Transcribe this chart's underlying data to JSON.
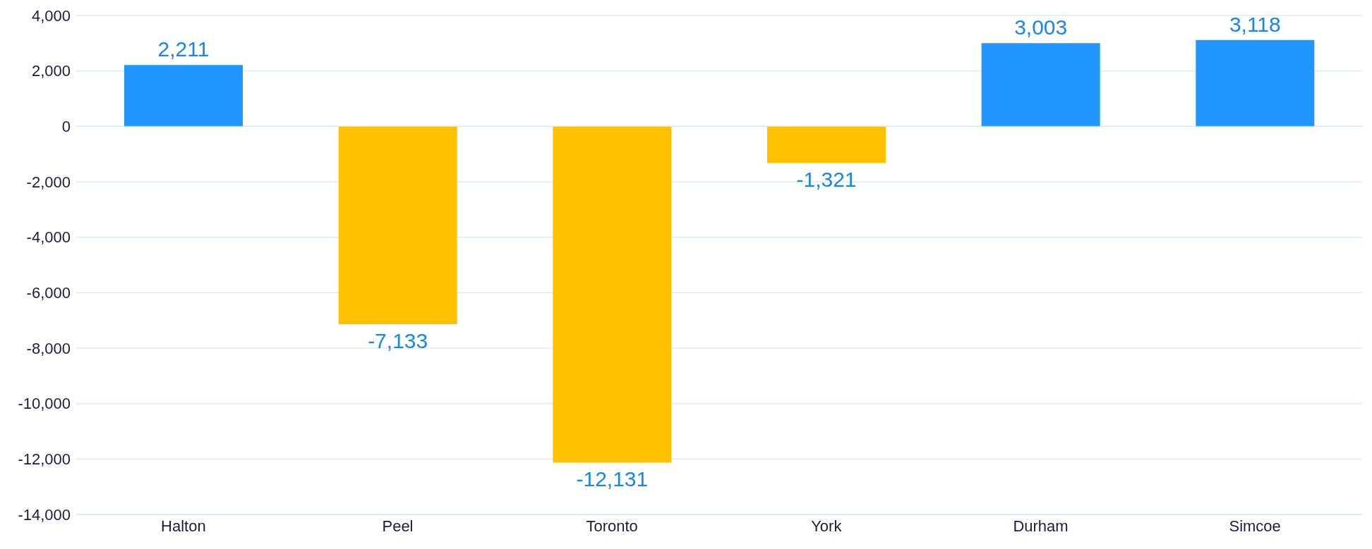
{
  "chart_data": {
    "type": "bar",
    "categories": [
      "Halton",
      "Peel",
      "Toronto",
      "York",
      "Durham",
      "Simcoe"
    ],
    "values": [
      2211,
      -7133,
      -12131,
      -1321,
      3003,
      3118
    ],
    "colors": [
      "#2196ff",
      "#ffc000",
      "#ffc000",
      "#ffc000",
      "#2196ff",
      "#2196ff"
    ],
    "value_labels": [
      "2,211",
      "-7,133",
      "-12,131",
      "-1,321",
      "3,003",
      "3,118"
    ],
    "ylim": [
      -14000,
      4000
    ],
    "yticks": [
      {
        "value": -14000,
        "label": "-14,000"
      },
      {
        "value": -12000,
        "label": "-12,000"
      },
      {
        "value": -10000,
        "label": "-10,000"
      },
      {
        "value": -8000,
        "label": "-8,000"
      },
      {
        "value": -6000,
        "label": "-6,000"
      },
      {
        "value": -4000,
        "label": "-4,000"
      },
      {
        "value": -2000,
        "label": "-2,000"
      },
      0,
      {
        "value": 2000,
        "label": "2,000"
      },
      {
        "value": 4000,
        "label": "4,000"
      }
    ],
    "grid": "y"
  }
}
